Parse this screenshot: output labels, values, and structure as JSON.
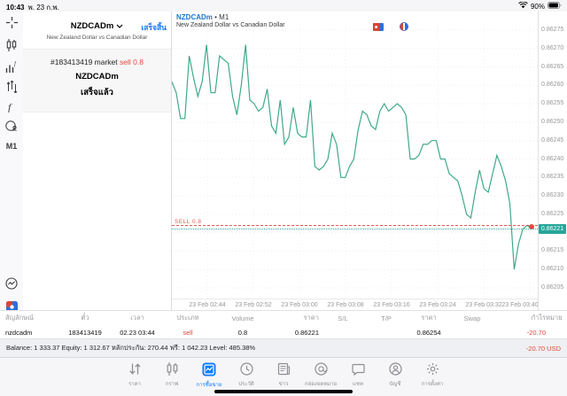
{
  "status_bar": {
    "time": "10:43",
    "date": "พ. 23 ก.พ.",
    "battery": "90%"
  },
  "toolbar": {
    "icons": [
      "crosshair-icon",
      "candlestick-icon",
      "indicators-icon",
      "objects-icon",
      "function-icon",
      "shapes-icon",
      "timeframe-button",
      "trading-circle-icon",
      "flag-icon"
    ],
    "timeframe": "M1"
  },
  "panel": {
    "title": "NZDCADm",
    "subtitle": "New Zealand Dollar vs Canadian Dollar",
    "done_button": "เสร็จสิ้น",
    "order": {
      "line1_prefix": "#183413419 market ",
      "line1_action": "sell 0.8",
      "symbol": "NZDCADm",
      "status": "เสร็จแล้ว"
    }
  },
  "chart": {
    "symbol": "NZDCADm",
    "timeframe_suffix": "• M1",
    "subtitle": "New Zealand Dollar vs Canadian Dollar"
  },
  "chart_data": {
    "type": "line",
    "title": "NZDCADm M1",
    "xlabel": "",
    "ylabel": "",
    "x_ticks": [
      "23 Feb 02:44",
      "23 Feb 02:52",
      "23 Feb 03:00",
      "23 Feb 03:08",
      "23 Feb 03:16",
      "23 Feb 03:24",
      "23 Feb 03:32",
      "23 Feb 03:40"
    ],
    "y_ticks": [
      0.86275,
      0.8627,
      0.86265,
      0.8626,
      0.86255,
      0.8625,
      0.86245,
      0.8624,
      0.86235,
      0.8623,
      0.86225,
      0.8622,
      0.86215,
      0.8621,
      0.86205
    ],
    "ylim": [
      0.86202,
      0.86277
    ],
    "grid": true,
    "legend": false,
    "series": [
      {
        "name": "NZDCADm close",
        "values": [
          0.86261,
          0.86258,
          0.86251,
          0.86251,
          0.86268,
          0.86262,
          0.86257,
          0.86261,
          0.86271,
          0.86258,
          0.86258,
          0.86268,
          0.86267,
          0.86266,
          0.86257,
          0.86252,
          0.8626,
          0.86271,
          0.86256,
          0.86255,
          0.86253,
          0.86254,
          0.86259,
          0.86249,
          0.86247,
          0.86256,
          0.86244,
          0.86246,
          0.86254,
          0.86247,
          0.86246,
          0.86246,
          0.86256,
          0.86238,
          0.86237,
          0.86238,
          0.8624,
          0.86247,
          0.86244,
          0.86235,
          0.86235,
          0.86238,
          0.8624,
          0.86248,
          0.86253,
          0.86252,
          0.86249,
          0.86248,
          0.86253,
          0.86255,
          0.86253,
          0.86254,
          0.86255,
          0.86254,
          0.86252,
          0.8624,
          0.8624,
          0.86241,
          0.86244,
          0.86244,
          0.86245,
          0.86245,
          0.8624,
          0.8624,
          0.86236,
          0.86235,
          0.86234,
          0.8623,
          0.86225,
          0.86224,
          0.86231,
          0.86237,
          0.86232,
          0.86231,
          0.86236,
          0.86241,
          0.86238,
          0.86234,
          0.86228,
          0.8621,
          0.86217,
          0.86221,
          0.86222,
          0.86221
        ]
      }
    ],
    "sell_line": {
      "label": "SELL 0.8",
      "price": 0.86222
    },
    "current_price": {
      "value": "0.86221",
      "price": 0.86221
    },
    "colors": {
      "line": "#3fa98c",
      "sell": "#e0584f",
      "price_box": "#26a69a",
      "marker": "#e5473c"
    }
  },
  "positions_table": {
    "headers": [
      "สัญลักษณ์",
      "ตั๋ว",
      "เวลา",
      "ประเภท",
      "Volume",
      "ราคา",
      "S/L",
      "T/P",
      "ราคา",
      "Swap",
      "กำไร",
      "หมายเหตุ"
    ],
    "row": [
      "nzdcadm",
      "183413419",
      "02.23 03:44",
      "sell",
      "0.8",
      "0.86221",
      "",
      "",
      "0.86254",
      "",
      "-20.70",
      ""
    ]
  },
  "account_bar": {
    "summary": "Balance: 1 333.37 Equity: 1 312.67 หลักประกัน: 270.44 ฟรี: 1 042.23 Level: 485.38%",
    "profit": "-20.70  USD"
  },
  "nav": {
    "active_index": 2,
    "items": [
      {
        "label": "ราคา",
        "icon": "arrows-updown-icon"
      },
      {
        "label": "กราฟ",
        "icon": "chart-candles-icon"
      },
      {
        "label": "การซื้อขาย",
        "icon": "trade-icon"
      },
      {
        "label": "ประวัติ",
        "icon": "history-clock-icon"
      },
      {
        "label": "ข่าว",
        "icon": "news-icon"
      },
      {
        "label": "กล่องจดหมาย",
        "icon": "mailbox-at-icon"
      },
      {
        "label": "แชท",
        "icon": "chat-bubble-icon"
      },
      {
        "label": "บัญชี",
        "icon": "account-person-icon"
      },
      {
        "label": "การตั้งค่า",
        "icon": "settings-gear-icon"
      }
    ]
  }
}
